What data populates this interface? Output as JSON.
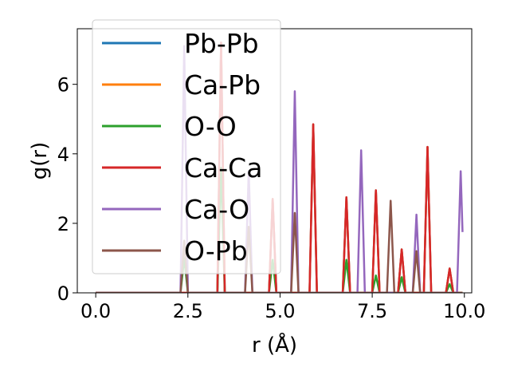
{
  "chart_data": {
    "type": "line",
    "title": "",
    "xlabel": "r (Å)",
    "ylabel": "g(r)",
    "xlim": [
      -0.5,
      10.2
    ],
    "ylim": [
      0,
      7.6
    ],
    "xticks": [
      0.0,
      2.5,
      5.0,
      7.5,
      10.0
    ],
    "xtick_labels": [
      "0.0",
      "2.5",
      "5.0",
      "7.5",
      "10.0"
    ],
    "yticks": [
      0,
      2,
      4,
      6
    ],
    "ytick_labels": [
      "0",
      "2",
      "4",
      "6"
    ],
    "grid": false,
    "legend_position": "upper-left",
    "series": [
      {
        "name": "Pb-Pb",
        "color": "#1f77b4",
        "peaks": [
          [
            3.4,
            7.2
          ],
          [
            4.8,
            2.7
          ],
          [
            5.9,
            4.85
          ],
          [
            6.8,
            2.75
          ],
          [
            7.6,
            2.95
          ],
          [
            8.3,
            1.25
          ],
          [
            9.0,
            4.2
          ],
          [
            9.6,
            0.7
          ]
        ]
      },
      {
        "name": "Ca-Pb",
        "color": "#ff7f0e",
        "peaks": [
          [
            3.4,
            7.2
          ],
          [
            4.8,
            2.7
          ],
          [
            5.9,
            4.85
          ],
          [
            6.8,
            2.75
          ],
          [
            7.6,
            2.95
          ],
          [
            8.3,
            1.25
          ],
          [
            9.0,
            4.2
          ],
          [
            9.6,
            0.7
          ]
        ]
      },
      {
        "name": "O-O",
        "color": "#2ca02c",
        "peaks": [
          [
            2.4,
            1.0
          ],
          [
            3.4,
            3.6
          ],
          [
            4.8,
            0.95
          ],
          [
            6.8,
            0.95
          ],
          [
            7.6,
            0.5
          ],
          [
            8.3,
            0.45
          ],
          [
            9.6,
            0.25
          ]
        ]
      },
      {
        "name": "Ca-Ca",
        "color": "#d62728",
        "peaks": [
          [
            3.4,
            7.2
          ],
          [
            4.8,
            2.7
          ],
          [
            5.9,
            4.85
          ],
          [
            6.8,
            2.75
          ],
          [
            7.6,
            2.95
          ],
          [
            8.3,
            1.25
          ],
          [
            9.0,
            4.2
          ],
          [
            9.6,
            0.7
          ]
        ]
      },
      {
        "name": "Ca-O",
        "color": "#9467bd",
        "peaks": [
          [
            2.4,
            7.1
          ],
          [
            4.15,
            3.5
          ],
          [
            5.4,
            5.8
          ],
          [
            7.2,
            4.1
          ],
          [
            8.7,
            2.25
          ],
          [
            9.9,
            3.5
          ]
        ]
      },
      {
        "name": "O-Pb",
        "color": "#8c564b",
        "peaks": [
          [
            2.4,
            1.5
          ],
          [
            4.15,
            1.9
          ],
          [
            5.4,
            2.3
          ],
          [
            8.0,
            2.65
          ],
          [
            8.7,
            1.2
          ]
        ]
      }
    ]
  }
}
